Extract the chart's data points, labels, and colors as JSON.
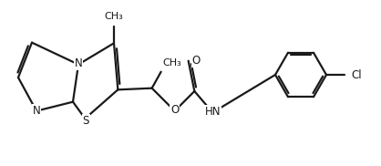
{
  "bg_color": "#ffffff",
  "line_color": "#1a1a1a",
  "line_width": 1.6,
  "font_size": 8.5,
  "label_color": "#1a1a1a",
  "figsize": [
    4.18,
    1.82
  ],
  "dpi": 100,
  "atoms": {
    "N": "N",
    "S": "S",
    "O_upper": "O",
    "O_ester": "O",
    "HN": "HN",
    "Cl": "Cl"
  }
}
